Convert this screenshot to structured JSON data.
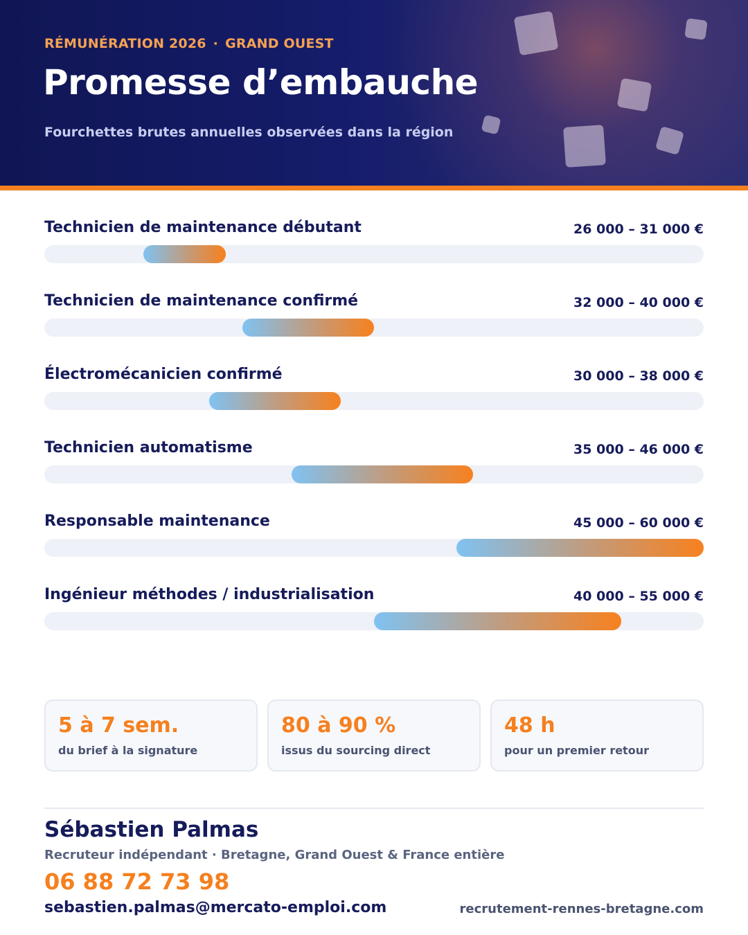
{
  "header": {
    "eyebrow_left": "RÉMUNÉRATION 2026",
    "eyebrow_separator": "·",
    "eyebrow_right": "GRAND OUEST",
    "title": "Promesse d’embauche",
    "subtitle": "Fourchettes brutes annuelles observées dans la région",
    "accent_color": "#f5801f",
    "background_color": "#151c6a"
  },
  "salary_scale": {
    "min": 20000,
    "max": 60000,
    "unit": "€"
  },
  "salaries": [
    {
      "label": "Technicien de maintenance débutant",
      "range_text": "26 000 – 31 000 €",
      "min": 26000,
      "max": 31000
    },
    {
      "label": "Technicien de maintenance confirmé",
      "range_text": "32 000 – 40 000 €",
      "min": 32000,
      "max": 40000
    },
    {
      "label": "Électromécanicien confirmé",
      "range_text": "30 000 – 38 000 €",
      "min": 30000,
      "max": 38000
    },
    {
      "label": "Technicien automatisme",
      "range_text": "35 000 – 46 000 €",
      "min": 35000,
      "max": 46000
    },
    {
      "label": "Responsable maintenance",
      "range_text": "45 000 – 60 000 €",
      "min": 45000,
      "max": 60000
    },
    {
      "label": "Ingénieur méthodes / industrialisation",
      "range_text": "40 000 – 55 000 €",
      "min": 40000,
      "max": 55000
    }
  ],
  "stats": [
    {
      "value": "5 à 7 sem.",
      "caption": "du brief à la signature"
    },
    {
      "value": "80 à 90 %",
      "caption": "issus du sourcing direct"
    },
    {
      "value": "48 h",
      "caption": "pour un premier retour"
    }
  ],
  "contact": {
    "name": "Sébastien Palmas",
    "role": "Recruteur indépendant · Bretagne, Grand Ouest & France entière",
    "phone": "06 88 72 73 98",
    "email": "sebastien.palmas@mercato-emploi.com",
    "website": "recrutement-rennes-bretagne.com"
  }
}
